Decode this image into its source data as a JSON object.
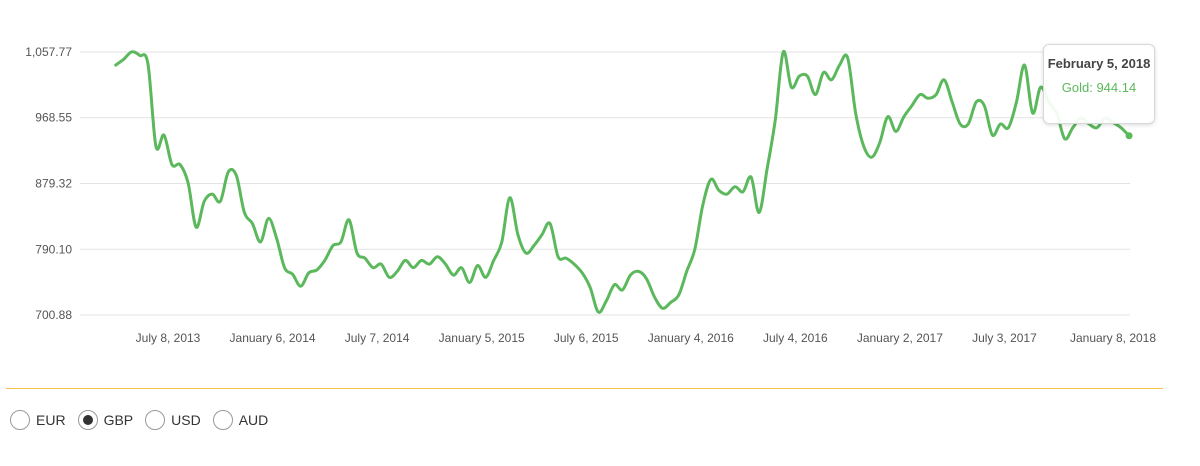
{
  "chart_data": {
    "type": "line",
    "series": [
      {
        "name": "Gold",
        "color": "#5cb85c"
      }
    ],
    "y_ticks": [
      "1,057.77",
      "968.55",
      "879.32",
      "790.10",
      "700.88"
    ],
    "y_values": [
      1057.77,
      968.55,
      879.32,
      790.1,
      700.88
    ],
    "ylim": [
      700.88,
      1057.77
    ],
    "x_ticks": [
      "July 8, 2013",
      "January 6, 2014",
      "July 7, 2014",
      "January 5, 2015",
      "July 6, 2015",
      "January 4, 2016",
      "July 4, 2016",
      "January 2, 2017",
      "July 3, 2017",
      "January 8, 2018"
    ],
    "x_tick_dates": [
      "2013-07-08",
      "2014-01-06",
      "2014-07-07",
      "2015-01-05",
      "2015-07-06",
      "2016-01-04",
      "2016-07-04",
      "2017-01-02",
      "2017-07-03",
      "2018-01-08"
    ],
    "grid": true,
    "points": [
      [
        "2013-04-08",
        1040
      ],
      [
        "2013-04-22",
        1048
      ],
      [
        "2013-05-06",
        1058
      ],
      [
        "2013-05-20",
        1053
      ],
      [
        "2013-06-03",
        1042
      ],
      [
        "2013-06-17",
        930
      ],
      [
        "2013-07-01",
        945
      ],
      [
        "2013-07-15",
        905
      ],
      [
        "2013-07-29",
        905
      ],
      [
        "2013-08-12",
        880
      ],
      [
        "2013-08-26",
        820
      ],
      [
        "2013-09-09",
        855
      ],
      [
        "2013-09-23",
        865
      ],
      [
        "2013-10-07",
        855
      ],
      [
        "2013-10-21",
        895
      ],
      [
        "2013-11-04",
        890
      ],
      [
        "2013-11-18",
        840
      ],
      [
        "2013-12-02",
        825
      ],
      [
        "2013-12-16",
        800
      ],
      [
        "2013-12-30",
        832
      ],
      [
        "2014-01-13",
        805
      ],
      [
        "2014-01-27",
        765
      ],
      [
        "2014-02-10",
        756
      ],
      [
        "2014-02-24",
        740
      ],
      [
        "2014-03-10",
        758
      ],
      [
        "2014-03-24",
        762
      ],
      [
        "2014-04-07",
        775
      ],
      [
        "2014-04-21",
        795
      ],
      [
        "2014-05-05",
        800
      ],
      [
        "2014-05-19",
        830
      ],
      [
        "2014-06-02",
        785
      ],
      [
        "2014-06-16",
        778
      ],
      [
        "2014-06-30",
        765
      ],
      [
        "2014-07-14",
        770
      ],
      [
        "2014-07-28",
        752
      ],
      [
        "2014-08-11",
        760
      ],
      [
        "2014-08-25",
        775
      ],
      [
        "2014-09-08",
        765
      ],
      [
        "2014-09-22",
        775
      ],
      [
        "2014-10-06",
        770
      ],
      [
        "2014-10-20",
        780
      ],
      [
        "2014-11-03",
        770
      ],
      [
        "2014-11-17",
        755
      ],
      [
        "2014-12-01",
        765
      ],
      [
        "2014-12-15",
        745
      ],
      [
        "2014-12-29",
        768
      ],
      [
        "2015-01-12",
        752
      ],
      [
        "2015-01-26",
        775
      ],
      [
        "2015-02-09",
        800
      ],
      [
        "2015-02-23",
        860
      ],
      [
        "2015-03-09",
        810
      ],
      [
        "2015-03-23",
        785
      ],
      [
        "2015-04-06",
        795
      ],
      [
        "2015-04-20",
        810
      ],
      [
        "2015-05-04",
        825
      ],
      [
        "2015-05-18",
        780
      ],
      [
        "2015-06-01",
        778
      ],
      [
        "2015-06-15",
        770
      ],
      [
        "2015-06-29",
        758
      ],
      [
        "2015-07-13",
        738
      ],
      [
        "2015-07-27",
        705
      ],
      [
        "2015-08-10",
        720
      ],
      [
        "2015-08-24",
        742
      ],
      [
        "2015-09-07",
        735
      ],
      [
        "2015-09-21",
        755
      ],
      [
        "2015-10-05",
        760
      ],
      [
        "2015-10-19",
        750
      ],
      [
        "2015-11-02",
        725
      ],
      [
        "2015-11-16",
        710
      ],
      [
        "2015-11-30",
        718
      ],
      [
        "2015-12-14",
        728
      ],
      [
        "2015-12-28",
        760
      ],
      [
        "2016-01-11",
        790
      ],
      [
        "2016-01-25",
        850
      ],
      [
        "2016-02-08",
        885
      ],
      [
        "2016-02-22",
        870
      ],
      [
        "2016-03-07",
        865
      ],
      [
        "2016-03-21",
        875
      ],
      [
        "2016-04-04",
        868
      ],
      [
        "2016-04-18",
        888
      ],
      [
        "2016-05-02",
        840
      ],
      [
        "2016-05-16",
        900
      ],
      [
        "2016-05-30",
        965
      ],
      [
        "2016-06-13",
        1058
      ],
      [
        "2016-06-27",
        1010
      ],
      [
        "2016-07-11",
        1025
      ],
      [
        "2016-07-25",
        1025
      ],
      [
        "2016-08-08",
        1000
      ],
      [
        "2016-08-22",
        1030
      ],
      [
        "2016-09-05",
        1020
      ],
      [
        "2016-09-19",
        1040
      ],
      [
        "2016-10-03",
        1050
      ],
      [
        "2016-10-17",
        975
      ],
      [
        "2016-10-31",
        930
      ],
      [
        "2016-11-14",
        915
      ],
      [
        "2016-11-28",
        935
      ],
      [
        "2016-12-12",
        970
      ],
      [
        "2016-12-26",
        950
      ],
      [
        "2017-01-09",
        970
      ],
      [
        "2017-01-23",
        985
      ],
      [
        "2017-02-06",
        1000
      ],
      [
        "2017-02-20",
        995
      ],
      [
        "2017-03-06",
        1000
      ],
      [
        "2017-03-20",
        1020
      ],
      [
        "2017-04-03",
        990
      ],
      [
        "2017-04-17",
        960
      ],
      [
        "2017-05-01",
        960
      ],
      [
        "2017-05-15",
        990
      ],
      [
        "2017-05-29",
        985
      ],
      [
        "2017-06-12",
        945
      ],
      [
        "2017-06-26",
        960
      ],
      [
        "2017-07-10",
        955
      ],
      [
        "2017-07-24",
        990
      ],
      [
        "2017-08-07",
        1040
      ],
      [
        "2017-08-21",
        975
      ],
      [
        "2017-09-04",
        1010
      ],
      [
        "2017-09-18",
        990
      ],
      [
        "2017-10-02",
        975
      ],
      [
        "2017-10-16",
        940
      ],
      [
        "2017-10-30",
        955
      ],
      [
        "2017-11-13",
        968
      ],
      [
        "2017-11-27",
        960
      ],
      [
        "2017-12-11",
        955
      ],
      [
        "2017-12-25",
        968
      ],
      [
        "2018-01-08",
        962
      ],
      [
        "2018-01-22",
        955
      ],
      [
        "2018-02-05",
        944.14
      ]
    ],
    "tooltip": {
      "date": "February 5, 2018",
      "label": "Gold: 944.14"
    }
  },
  "currency": {
    "options": [
      {
        "label": "EUR",
        "checked": false
      },
      {
        "label": "GBP",
        "checked": true
      },
      {
        "label": "USD",
        "checked": false
      },
      {
        "label": "AUD",
        "checked": false
      }
    ]
  }
}
